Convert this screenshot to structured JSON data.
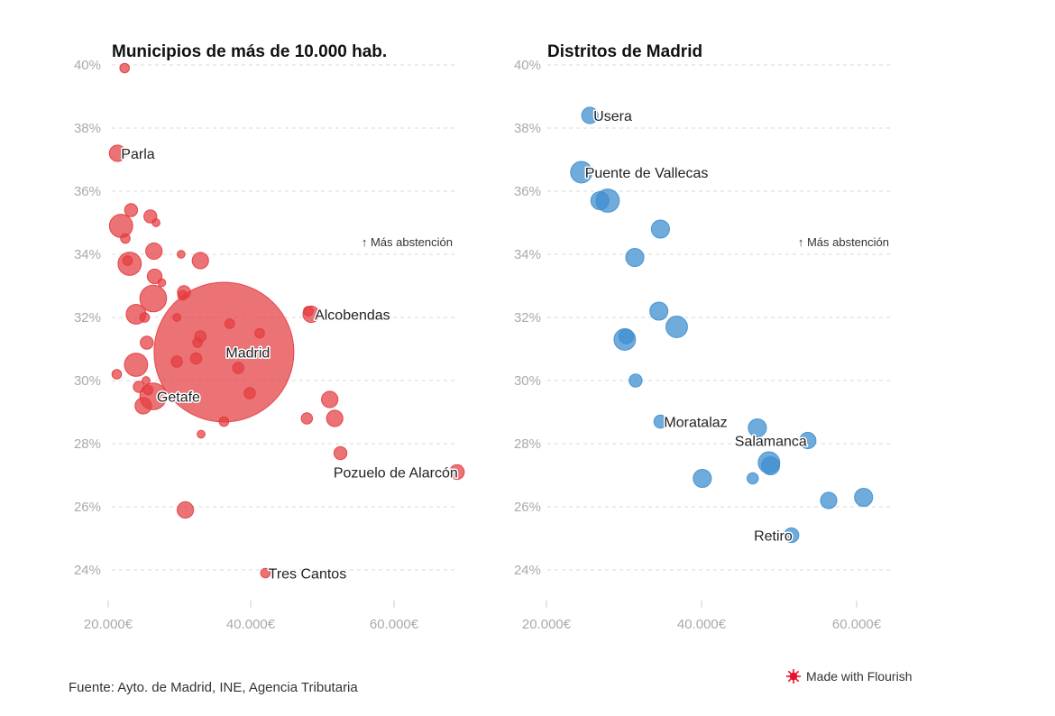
{
  "source": "Fuente: Ayto. de Madrid, INE, Agencia Tributaria",
  "credit": "Made with Flourish",
  "colors": {
    "municipios": "#e33b40",
    "distritos": "#3f8fcf"
  },
  "chart_data": [
    {
      "type": "scatter",
      "title": "Municipios de más de 10.000 hab.",
      "xlabel": "",
      "ylabel": "",
      "xlim": [
        20000,
        70000
      ],
      "ylim": [
        23,
        40
      ],
      "x_ticks": [
        "20.000€",
        "40.000€",
        "60.000€"
      ],
      "y_ticks": [
        "24%",
        "26%",
        "28%",
        "30%",
        "32%",
        "34%",
        "36%",
        "38%",
        "40%"
      ],
      "grid": true,
      "annotation": "↑ Más abstención",
      "color": "#e33b40",
      "points": [
        {
          "x": 22300,
          "y": 39.9,
          "size": 2,
          "label": ""
        },
        {
          "x": 21300,
          "y": 37.2,
          "size": 4,
          "label": "Parla"
        },
        {
          "x": 23200,
          "y": 35.4,
          "size": 3,
          "label": ""
        },
        {
          "x": 21800,
          "y": 34.9,
          "size": 6,
          "label": ""
        },
        {
          "x": 22400,
          "y": 34.5,
          "size": 2,
          "label": ""
        },
        {
          "x": 25900,
          "y": 35.2,
          "size": 3,
          "label": ""
        },
        {
          "x": 26700,
          "y": 35.0,
          "size": 1.5,
          "label": ""
        },
        {
          "x": 26400,
          "y": 34.1,
          "size": 4,
          "label": ""
        },
        {
          "x": 30200,
          "y": 34.0,
          "size": 1.5,
          "label": ""
        },
        {
          "x": 32900,
          "y": 33.8,
          "size": 4,
          "label": ""
        },
        {
          "x": 22700,
          "y": 33.8,
          "size": 2,
          "label": ""
        },
        {
          "x": 23000,
          "y": 33.7,
          "size": 6,
          "label": ""
        },
        {
          "x": 26500,
          "y": 33.3,
          "size": 3.5,
          "label": ""
        },
        {
          "x": 27500,
          "y": 33.1,
          "size": 1.5,
          "label": ""
        },
        {
          "x": 30600,
          "y": 32.8,
          "size": 3,
          "label": ""
        },
        {
          "x": 30400,
          "y": 32.7,
          "size": 2,
          "label": ""
        },
        {
          "x": 26300,
          "y": 32.6,
          "size": 7,
          "label": ""
        },
        {
          "x": 23900,
          "y": 32.1,
          "size": 5,
          "label": ""
        },
        {
          "x": 25100,
          "y": 32.0,
          "size": 2,
          "label": ""
        },
        {
          "x": 29600,
          "y": 32.0,
          "size": 1.5,
          "label": ""
        },
        {
          "x": 36200,
          "y": 30.9,
          "size": 40,
          "label": "Madrid"
        },
        {
          "x": 37000,
          "y": 31.8,
          "size": 2,
          "label": ""
        },
        {
          "x": 32900,
          "y": 31.4,
          "size": 2.5,
          "label": ""
        },
        {
          "x": 32500,
          "y": 31.2,
          "size": 2,
          "label": ""
        },
        {
          "x": 41200,
          "y": 31.5,
          "size": 2,
          "label": ""
        },
        {
          "x": 25400,
          "y": 31.2,
          "size": 3,
          "label": ""
        },
        {
          "x": 32300,
          "y": 30.7,
          "size": 2.5,
          "label": ""
        },
        {
          "x": 29600,
          "y": 30.6,
          "size": 2.5,
          "label": ""
        },
        {
          "x": 23900,
          "y": 30.5,
          "size": 6,
          "label": ""
        },
        {
          "x": 38200,
          "y": 30.4,
          "size": 2.5,
          "label": ""
        },
        {
          "x": 21200,
          "y": 30.2,
          "size": 2,
          "label": ""
        },
        {
          "x": 25300,
          "y": 30.0,
          "size": 1.5,
          "label": ""
        },
        {
          "x": 24300,
          "y": 29.8,
          "size": 2.5,
          "label": ""
        },
        {
          "x": 25600,
          "y": 29.7,
          "size": 2,
          "label": ""
        },
        {
          "x": 26300,
          "y": 29.5,
          "size": 7,
          "label": "Getafe"
        },
        {
          "x": 39800,
          "y": 29.6,
          "size": 2.5,
          "label": ""
        },
        {
          "x": 24900,
          "y": 29.2,
          "size": 4,
          "label": ""
        },
        {
          "x": 48000,
          "y": 32.2,
          "size": 2,
          "label": ""
        },
        {
          "x": 48400,
          "y": 32.1,
          "size": 4,
          "label": "Alcobendas"
        },
        {
          "x": 51000,
          "y": 29.4,
          "size": 4,
          "label": ""
        },
        {
          "x": 36200,
          "y": 28.7,
          "size": 2,
          "label": ""
        },
        {
          "x": 47800,
          "y": 28.8,
          "size": 2.5,
          "label": ""
        },
        {
          "x": 51700,
          "y": 28.8,
          "size": 4,
          "label": ""
        },
        {
          "x": 33000,
          "y": 28.3,
          "size": 1.5,
          "label": ""
        },
        {
          "x": 52500,
          "y": 27.7,
          "size": 3,
          "label": ""
        },
        {
          "x": 68800,
          "y": 27.1,
          "size": 3.5,
          "label": "Pozuelo de Alarcón"
        },
        {
          "x": 30800,
          "y": 25.9,
          "size": 4,
          "label": ""
        },
        {
          "x": 42000,
          "y": 23.9,
          "size": 2,
          "label": "Tres Cantos"
        }
      ]
    },
    {
      "type": "scatter",
      "title": "Distritos de Madrid",
      "xlabel": "",
      "ylabel": "",
      "xlim": [
        20000,
        65000
      ],
      "ylim": [
        23,
        40
      ],
      "x_ticks": [
        "20.000€",
        "40.000€",
        "60.000€"
      ],
      "y_ticks": [
        "24%",
        "26%",
        "28%",
        "30%",
        "32%",
        "34%",
        "36%",
        "38%",
        "40%"
      ],
      "grid": true,
      "annotation": "↑ Más abstención",
      "color": "#3f8fcf",
      "points": [
        {
          "x": 25600,
          "y": 38.4,
          "size": 4,
          "label": "Usera"
        },
        {
          "x": 24500,
          "y": 36.6,
          "size": 5.5,
          "label": "Puente de Vallecas"
        },
        {
          "x": 26900,
          "y": 35.7,
          "size": 4.5,
          "label": ""
        },
        {
          "x": 27900,
          "y": 35.7,
          "size": 6,
          "label": ""
        },
        {
          "x": 34700,
          "y": 34.8,
          "size": 4.5,
          "label": ""
        },
        {
          "x": 31400,
          "y": 33.9,
          "size": 4.5,
          "label": ""
        },
        {
          "x": 34500,
          "y": 32.2,
          "size": 4.5,
          "label": ""
        },
        {
          "x": 36800,
          "y": 31.7,
          "size": 5.5,
          "label": ""
        },
        {
          "x": 30100,
          "y": 31.3,
          "size": 5.5,
          "label": ""
        },
        {
          "x": 30300,
          "y": 31.4,
          "size": 3.5,
          "label": ""
        },
        {
          "x": 31500,
          "y": 30.0,
          "size": 3,
          "label": ""
        },
        {
          "x": 34700,
          "y": 28.7,
          "size": 3,
          "label": "Moratalaz"
        },
        {
          "x": 47200,
          "y": 28.5,
          "size": 4.5,
          "label": ""
        },
        {
          "x": 53700,
          "y": 28.1,
          "size": 4,
          "label": "Salamanca"
        },
        {
          "x": 48700,
          "y": 27.4,
          "size": 5.5,
          "label": ""
        },
        {
          "x": 48900,
          "y": 27.3,
          "size": 4.5,
          "label": ""
        },
        {
          "x": 40100,
          "y": 26.9,
          "size": 4.5,
          "label": ""
        },
        {
          "x": 46600,
          "y": 26.9,
          "size": 2.5,
          "label": ""
        },
        {
          "x": 56400,
          "y": 26.2,
          "size": 4,
          "label": ""
        },
        {
          "x": 60900,
          "y": 26.3,
          "size": 4.5,
          "label": ""
        },
        {
          "x": 51600,
          "y": 25.1,
          "size": 3.5,
          "label": "Retiro"
        }
      ]
    }
  ]
}
